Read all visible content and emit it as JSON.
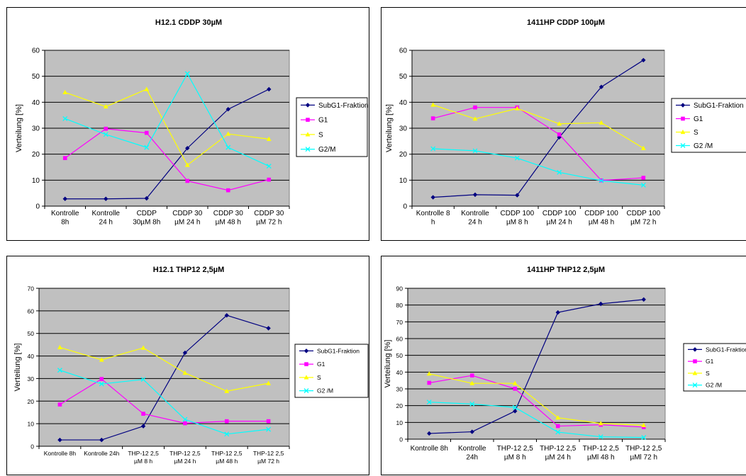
{
  "chart_data": [
    {
      "type": "line",
      "title": "H12.1 CDDP 30µM",
      "ylabel": "Verteilung [%]",
      "ylim": [
        0,
        60
      ],
      "yticks": [
        0,
        10,
        20,
        30,
        40,
        50,
        60
      ],
      "grid": true,
      "legend": "right",
      "categories": [
        [
          "Kontrolle",
          "8h"
        ],
        [
          "Kontrolle",
          "24 h"
        ],
        [
          "CDDP",
          "30µM 8h"
        ],
        [
          "CDDP 30",
          "µM 24 h"
        ],
        [
          "CDDP 30",
          "µM 48 h"
        ],
        [
          "CDDP 30",
          "µM 72 h"
        ]
      ],
      "series": [
        {
          "name": "SubG1-Fraktion",
          "values": [
            2.8,
            2.8,
            3.0,
            22.3,
            37.3,
            45.0
          ]
        },
        {
          "name": "G1",
          "values": [
            18.5,
            29.8,
            28.2,
            9.7,
            6.1,
            10.2
          ]
        },
        {
          "name": "S",
          "values": [
            43.8,
            38.3,
            45.0,
            15.8,
            27.8,
            25.8
          ]
        },
        {
          "name": "G2/M",
          "values": [
            33.7,
            27.6,
            22.6,
            51.0,
            22.6,
            15.4
          ]
        }
      ]
    },
    {
      "type": "line",
      "title": "1411HP CDDP 100µM",
      "ylabel": "Verteilung [%]",
      "ylim": [
        0,
        60
      ],
      "yticks": [
        0,
        10,
        20,
        30,
        40,
        50,
        60
      ],
      "grid": true,
      "legend": "right",
      "categories": [
        [
          "Kontrolle 8",
          "h"
        ],
        [
          "Kontrolle",
          "24 h"
        ],
        [
          "CDDP 100",
          "µM 8 h"
        ],
        [
          "CDDP 100",
          "µM  24 h"
        ],
        [
          "CDDP 100",
          "µM  48 h"
        ],
        [
          "CDDP 100",
          "µM  72 h"
        ]
      ],
      "series": [
        {
          "name": "SubG1-Fraktion",
          "values": [
            3.4,
            4.4,
            4.2,
            26.5,
            45.9,
            56.2
          ]
        },
        {
          "name": "G1",
          "values": [
            33.8,
            38.0,
            38.0,
            27.6,
            9.9,
            10.9
          ]
        },
        {
          "name": "S",
          "values": [
            39.0,
            33.6,
            37.6,
            31.7,
            32.1,
            22.3
          ]
        },
        {
          "name": "G2 /M",
          "values": [
            22.1,
            21.3,
            18.5,
            13.0,
            9.8,
            8.1
          ]
        }
      ]
    },
    {
      "type": "line",
      "title": "H12.1 THP12 2,5µM",
      "ylabel": "Verteilung [%]",
      "ylim": [
        0,
        70
      ],
      "yticks": [
        0,
        10,
        20,
        30,
        40,
        50,
        60,
        70
      ],
      "grid": true,
      "legend": "right",
      "categories": [
        [
          "Kontrolle 8h"
        ],
        [
          "Kontrolle 24h"
        ],
        [
          "THP-12 2,5",
          "µM 8 h"
        ],
        [
          "THP-12 2,5",
          "µM 24 h"
        ],
        [
          "THP-12 2,5",
          "µM 48 h"
        ],
        [
          "THP-12 2,5",
          "µM 72 h"
        ]
      ],
      "series": [
        {
          "name": "SubG1-Fraktion",
          "values": [
            2.8,
            2.8,
            8.9,
            41.4,
            58.0,
            52.3
          ]
        },
        {
          "name": "G1",
          "values": [
            18.5,
            29.8,
            14.4,
            10.2,
            11.1,
            11.1
          ]
        },
        {
          "name": "S",
          "values": [
            43.8,
            38.3,
            43.6,
            32.5,
            24.4,
            27.9
          ]
        },
        {
          "name": "G2 /M",
          "values": [
            33.7,
            27.6,
            29.6,
            11.9,
            5.4,
            7.5
          ]
        }
      ]
    },
    {
      "type": "line",
      "title": "1411HP THP12 2,5µM",
      "ylabel": "Verteilung [%]",
      "ylim": [
        0,
        90
      ],
      "yticks": [
        0,
        10,
        20,
        30,
        40,
        50,
        60,
        70,
        80,
        90
      ],
      "grid": true,
      "legend": "right",
      "categories": [
        [
          "Kontrolle 8h"
        ],
        [
          "Kontrolle",
          "24h"
        ],
        [
          "THP-12 2,5",
          "µM 8 h"
        ],
        [
          "THP-12 2,5",
          "µM 24 h"
        ],
        [
          "THP-12 2,5",
          "µMl 48 h"
        ],
        [
          "THP-12 2,5",
          "µMl 72 h"
        ]
      ],
      "series": [
        {
          "name": "SubG1-Fraktion",
          "values": [
            3.4,
            4.4,
            16.7,
            75.6,
            80.7,
            83.3
          ]
        },
        {
          "name": "G1",
          "values": [
            33.6,
            38.0,
            30.1,
            7.8,
            8.6,
            7.2
          ]
        },
        {
          "name": "S",
          "values": [
            39.0,
            33.3,
            33.3,
            12.8,
            9.4,
            8.3
          ]
        },
        {
          "name": "G2 /M",
          "values": [
            22.1,
            21.0,
            18.9,
            4.2,
            1.4,
            1.0
          ]
        }
      ]
    }
  ],
  "colors": {
    "plot_background": "#c0c0c0",
    "grid": "#000000",
    "series": [
      "#000080",
      "#ff00ff",
      "#ffff00",
      "#00ffff"
    ]
  },
  "markers": [
    "diamond",
    "square",
    "triangle",
    "x"
  ]
}
